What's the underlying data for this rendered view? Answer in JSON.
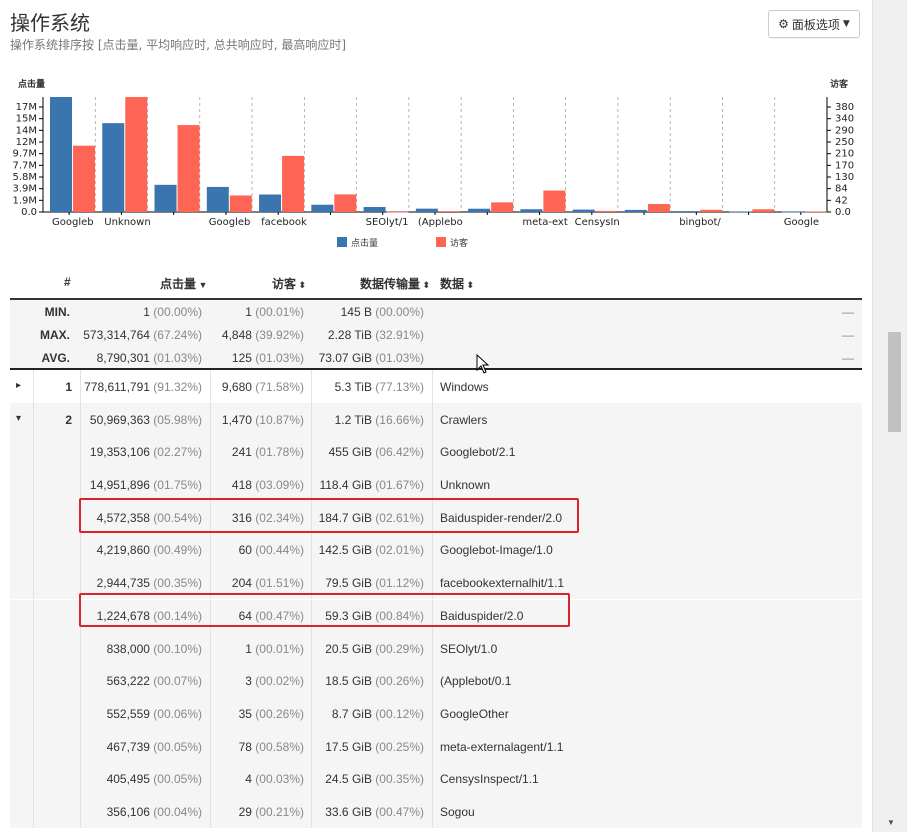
{
  "header": {
    "title": "操作系统",
    "subtitle": "操作系统排序按 [点击量, 平均响应时, 总共响应时, 最高响应时]",
    "options_label": "面板选项"
  },
  "chart_data": {
    "type": "bar",
    "categories": [
      "Googleb",
      "Unknown",
      "",
      "Googleb",
      "facebook",
      "",
      "SEOlyt/1",
      "(Applebo",
      "",
      "meta-ext",
      "CensysIn",
      "",
      "bingbot/",
      "",
      "Google"
    ],
    "series": [
      {
        "name": "点击量",
        "axis": "left",
        "color": "#3a75b0",
        "values": [
          19353106,
          14951896,
          4572358,
          4219860,
          2944735,
          1224678,
          838000,
          563222,
          552559,
          467739,
          405495,
          356106,
          150000,
          90000,
          60000
        ]
      },
      {
        "name": "访客",
        "axis": "right",
        "color": "#fe6554",
        "values": [
          241,
          418,
          316,
          60,
          204,
          64,
          1,
          3,
          35,
          78,
          4,
          29,
          8,
          10,
          2
        ]
      }
    ],
    "ylabel_left": "点击量",
    "ylabel_right": "访客",
    "yticks_left": [
      "0.0",
      "1.9M",
      "3.9M",
      "5.8M",
      "7.7M",
      "9.7M",
      "12M",
      "14M",
      "15M",
      "17M"
    ],
    "yticks_right": [
      "0.0",
      "42",
      "84",
      "130",
      "170",
      "210",
      "250",
      "290",
      "340",
      "380"
    ],
    "ylim_left": [
      0,
      19353106
    ],
    "ylim_right": [
      0,
      418
    ],
    "legend_position": "bottom"
  },
  "table": {
    "columns": {
      "num": "#",
      "hits": "点击量",
      "visitors": "访客",
      "bandwidth": "数据传输量",
      "data": "数据"
    },
    "summary": [
      {
        "label": "MIN.",
        "hits": "1",
        "hits_pct": "(00.00%)",
        "visitors": "1",
        "visitors_pct": "(00.01%)",
        "bw": "145 B",
        "bw_pct": "(00.00%)",
        "dash": "—"
      },
      {
        "label": "MAX.",
        "hits": "573,314,764",
        "hits_pct": "(67.24%)",
        "visitors": "4,848",
        "visitors_pct": "(39.92%)",
        "bw": "2.28 TiB",
        "bw_pct": "(32.91%)",
        "dash": "—"
      },
      {
        "label": "AVG.",
        "hits": "8,790,301",
        "hits_pct": "(01.03%)",
        "visitors": "125",
        "visitors_pct": "(01.03%)",
        "bw": "73.07 GiB",
        "bw_pct": "(01.03%)",
        "dash": "—"
      }
    ],
    "rows": [
      {
        "num": "1",
        "expander": "▸",
        "hits": "778,611,791",
        "hits_pct": "(91.32%)",
        "visitors": "9,680",
        "visitors_pct": "(71.58%)",
        "bw": "5.3 TiB",
        "bw_pct": "(77.13%)",
        "data": "Windows"
      },
      {
        "num": "2",
        "expander": "▾",
        "hits": "50,969,363",
        "hits_pct": "(05.98%)",
        "visitors": "1,470",
        "visitors_pct": "(10.87%)",
        "bw": "1.2 TiB",
        "bw_pct": "(16.66%)",
        "data": "Crawlers"
      },
      {
        "hits": "19,353,106",
        "hits_pct": "(02.27%)",
        "visitors": "241",
        "visitors_pct": "(01.78%)",
        "bw": "455 GiB",
        "bw_pct": "(06.42%)",
        "data": "Googlebot/2.1"
      },
      {
        "hits": "14,951,896",
        "hits_pct": "(01.75%)",
        "visitors": "418",
        "visitors_pct": "(03.09%)",
        "bw": "118.4 GiB",
        "bw_pct": "(01.67%)",
        "data": "Unknown"
      },
      {
        "hits": "4,572,358",
        "hits_pct": "(00.54%)",
        "visitors": "316",
        "visitors_pct": "(02.34%)",
        "bw": "184.7 GiB",
        "bw_pct": "(02.61%)",
        "data": "Baiduspider-render/2.0",
        "highlight": true
      },
      {
        "hits": "4,219,860",
        "hits_pct": "(00.49%)",
        "visitors": "60",
        "visitors_pct": "(00.44%)",
        "bw": "142.5 GiB",
        "bw_pct": "(02.01%)",
        "data": "Googlebot-Image/1.0"
      },
      {
        "hits": "2,944,735",
        "hits_pct": "(00.35%)",
        "visitors": "204",
        "visitors_pct": "(01.51%)",
        "bw": "79.5 GiB",
        "bw_pct": "(01.12%)",
        "data": "facebookexternalhit/1.1"
      },
      {
        "hits": "1,224,678",
        "hits_pct": "(00.14%)",
        "visitors": "64",
        "visitors_pct": "(00.47%)",
        "bw": "59.3 GiB",
        "bw_pct": "(00.84%)",
        "data": "Baiduspider/2.0",
        "highlight": true
      },
      {
        "hits": "838,000",
        "hits_pct": "(00.10%)",
        "visitors": "1",
        "visitors_pct": "(00.01%)",
        "bw": "20.5 GiB",
        "bw_pct": "(00.29%)",
        "data": "SEOlyt/1.0"
      },
      {
        "hits": "563,222",
        "hits_pct": "(00.07%)",
        "visitors": "3",
        "visitors_pct": "(00.02%)",
        "bw": "18.5 GiB",
        "bw_pct": "(00.26%)",
        "data": "(Applebot/0.1"
      },
      {
        "hits": "552,559",
        "hits_pct": "(00.06%)",
        "visitors": "35",
        "visitors_pct": "(00.26%)",
        "bw": "8.7 GiB",
        "bw_pct": "(00.12%)",
        "data": "GoogleOther"
      },
      {
        "hits": "467,739",
        "hits_pct": "(00.05%)",
        "visitors": "78",
        "visitors_pct": "(00.58%)",
        "bw": "17.5 GiB",
        "bw_pct": "(00.25%)",
        "data": "meta-externalagent/1.1"
      },
      {
        "hits": "405,495",
        "hits_pct": "(00.05%)",
        "visitors": "4",
        "visitors_pct": "(00.03%)",
        "bw": "24.5 GiB",
        "bw_pct": "(00.35%)",
        "data": "CensysInspect/1.1"
      },
      {
        "hits": "356,106",
        "hits_pct": "(00.04%)",
        "visitors": "29",
        "visitors_pct": "(00.21%)",
        "bw": "33.6 GiB",
        "bw_pct": "(00.47%)",
        "data": "Sogou"
      }
    ]
  },
  "icons": {
    "options": "gear-icon",
    "sort": "sort-icon",
    "expand": "triangle-icon",
    "cursor": "mouse-pointer-icon"
  },
  "colors": {
    "hits": "#3a75b0",
    "visitors": "#fe6554",
    "highlight": "#d9232d"
  }
}
